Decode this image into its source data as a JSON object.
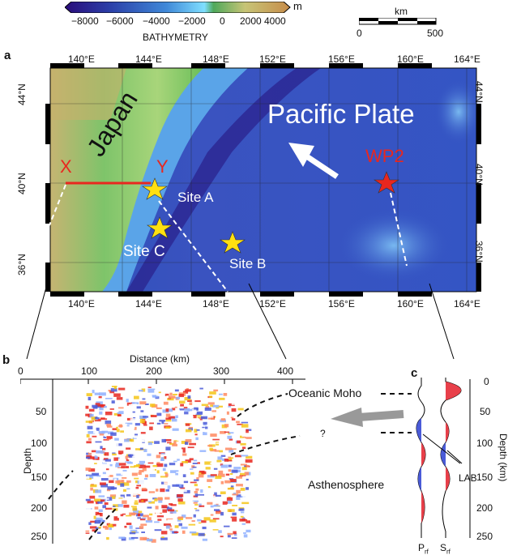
{
  "colorbar": {
    "unit": "m",
    "ticks": [
      "−8000",
      "−6000",
      "−4000",
      "−2000",
      "0",
      "2000",
      "4000"
    ],
    "title": "BATHYMETRY"
  },
  "scalebar": {
    "unit": "km",
    "min": "0",
    "max": "500"
  },
  "panel_a": {
    "label": "a",
    "lon_ticks": [
      "140°E",
      "144°E",
      "148°E",
      "152°E",
      "156°E",
      "160°E",
      "164°E"
    ],
    "lat_ticks": [
      "44°N",
      "40°N",
      "36°N"
    ],
    "labels": {
      "plate": "Pacific  Plate",
      "japan": "Japan",
      "wp2": "WP2",
      "x": "X",
      "y": "Y",
      "site_a": "Site A",
      "site_b": "Site B",
      "site_c": "Site C"
    }
  },
  "panel_b": {
    "label": "b",
    "xlabel": "Distance (km)",
    "x_ticks": [
      "0",
      "100",
      "200",
      "300",
      "400"
    ],
    "ylabel": "Depth",
    "y_ticks": [
      "50",
      "100",
      "150",
      "200",
      "250"
    ],
    "annotations": {
      "moho": "Oceanic Moho",
      "asthenosphere": "Asthenosphere",
      "question": "?"
    }
  },
  "panel_c": {
    "label": "c",
    "ylabel": "Depth (km)",
    "y_ticks": [
      "0",
      "50",
      "100",
      "150",
      "200",
      "250"
    ],
    "lab": "LAB",
    "prf": "P",
    "prf_sub": "rf",
    "srf": "S",
    "srf_sub": "rf"
  },
  "colors": {
    "deep": "#2b3fa8",
    "shallow": "#6fd0ff",
    "land_low": "#6bbf5a",
    "land_high": "#d8b46a",
    "red": "#e8271f",
    "star": "#ffe010",
    "positive": "#e8404a",
    "negative": "#4a5bd8"
  }
}
